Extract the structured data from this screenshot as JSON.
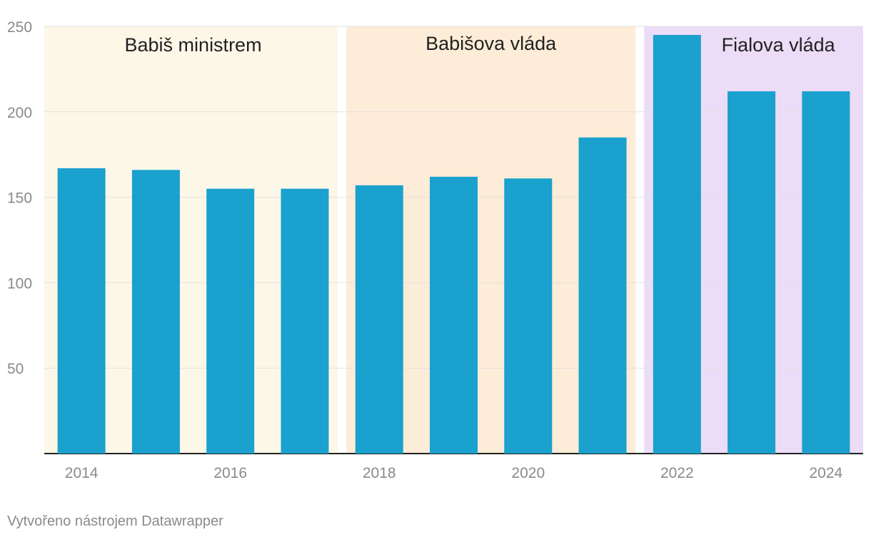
{
  "chart_data": {
    "type": "bar",
    "x": [
      2014,
      2015,
      2016,
      2017,
      2018,
      2019,
      2020,
      2021,
      2022,
      2023,
      2024
    ],
    "values": [
      167,
      166,
      155,
      155,
      157,
      162,
      161,
      185,
      245,
      212,
      212
    ],
    "ylim": [
      0,
      250
    ],
    "yticks": [
      50,
      100,
      150,
      200,
      250
    ],
    "xticks": [
      2014,
      2016,
      2018,
      2020,
      2022,
      2024
    ],
    "grid": true,
    "bar_color": "#1aa1cd",
    "regions": [
      {
        "label": "Babiš ministrem",
        "from": 2014,
        "to": 2017,
        "color": "#fdf7e8"
      },
      {
        "label": "Babišova vláda",
        "from": 2018,
        "to": 2021,
        "color": "#fdecd7"
      },
      {
        "label": "Fialova vláda",
        "from": 2022,
        "to": 2024,
        "color": "#ecdcf7"
      }
    ]
  },
  "credit": "Vytvořeno nástrojem Datawrapper"
}
